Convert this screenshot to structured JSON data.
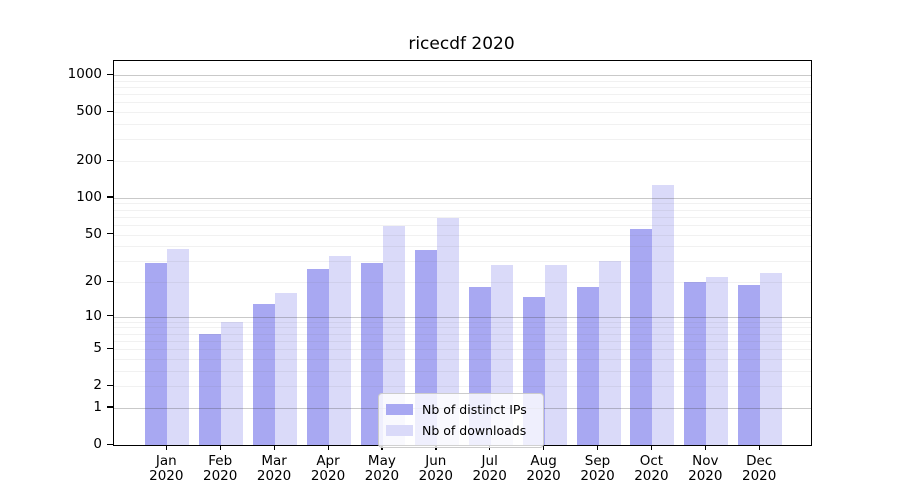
{
  "title": "ricecdf 2020",
  "chart_data": {
    "type": "bar",
    "title": "ricecdf 2020",
    "categories": [
      "Jan",
      "Feb",
      "Mar",
      "Apr",
      "May",
      "Jun",
      "Jul",
      "Aug",
      "Sep",
      "Oct",
      "Nov",
      "Dec"
    ],
    "category_year": "2020",
    "series": [
      {
        "name": "Nb of distinct IPs",
        "color": "#a8a8f2",
        "values": [
          29,
          7,
          13,
          26,
          29,
          37,
          18,
          15,
          18,
          56,
          20,
          19
        ]
      },
      {
        "name": "Nb of downloads",
        "color": "#dadaf9",
        "values": [
          38,
          9,
          16,
          33,
          59,
          69,
          28,
          28,
          30,
          128,
          22,
          24
        ]
      }
    ],
    "y_axis": {
      "scale": "log10(1+v)",
      "tick_values": [
        0,
        1,
        2,
        5,
        10,
        20,
        50,
        100,
        200,
        500,
        1000
      ],
      "range_top": 1300
    },
    "grid": {
      "enabled": true,
      "major_line_values": [
        1,
        10,
        100,
        1000
      ],
      "minor_line_values": [
        2,
        3,
        4,
        5,
        6,
        7,
        8,
        9,
        20,
        30,
        40,
        50,
        60,
        70,
        80,
        90,
        200,
        300,
        400,
        500,
        600,
        700,
        800,
        900
      ]
    },
    "legend_position": "lower center"
  }
}
